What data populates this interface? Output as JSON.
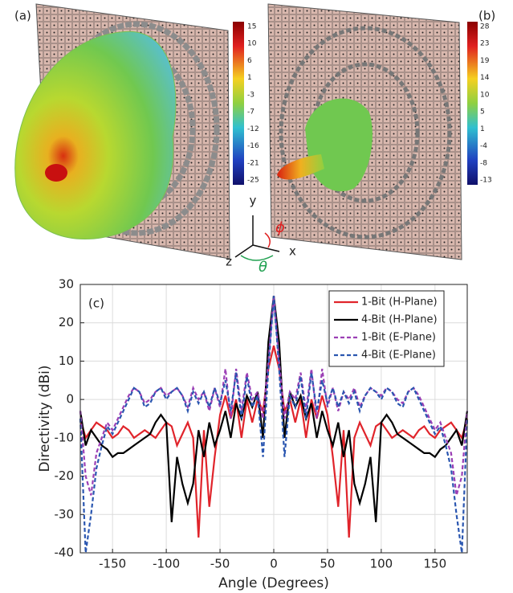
{
  "panel_a": {
    "label": "(a)",
    "colorbar_ticks": [
      15,
      10,
      6,
      1,
      -3,
      -7,
      -12,
      -16,
      -21,
      -25
    ]
  },
  "panel_b": {
    "label": "(b)",
    "colorbar_ticks": [
      28,
      23,
      19,
      14,
      10,
      5,
      1,
      -4,
      -8,
      -13
    ]
  },
  "triad": {
    "y": "y",
    "x": "x",
    "z": "z",
    "phi": "ϕ",
    "theta": "θ"
  },
  "chart_data": {
    "type": "line",
    "panel_label": "(c)",
    "x_label": "Angle (Degrees)",
    "y_label": "Directivity (dBi)",
    "xlim": [
      -180,
      180
    ],
    "ylim": [
      -40,
      30
    ],
    "xticks": [
      -150,
      -100,
      -50,
      0,
      50,
      100,
      150
    ],
    "yticks": [
      -40,
      -30,
      -20,
      -10,
      0,
      10,
      20,
      30
    ],
    "grid": true,
    "legend": "top-right",
    "x": [
      -180,
      -175,
      -170,
      -165,
      -160,
      -155,
      -150,
      -145,
      -140,
      -135,
      -130,
      -125,
      -120,
      -115,
      -110,
      -105,
      -100,
      -95,
      -90,
      -85,
      -80,
      -75,
      -70,
      -65,
      -60,
      -55,
      -50,
      -45,
      -40,
      -35,
      -30,
      -25,
      -20,
      -15,
      -10,
      -5,
      0,
      5,
      10,
      15,
      20,
      25,
      30,
      35,
      40,
      45,
      50,
      55,
      60,
      65,
      70,
      75,
      80,
      85,
      90,
      95,
      100,
      105,
      110,
      115,
      120,
      125,
      130,
      135,
      140,
      145,
      150,
      155,
      160,
      165,
      170,
      175,
      180
    ],
    "series": [
      {
        "name": "1-Bit (H-Plane)",
        "color": "#e0242b",
        "dashed": false,
        "values": [
          -5,
          -10,
          -8,
          -6,
          -7,
          -8,
          -10,
          -9,
          -7,
          -8,
          -10,
          -9,
          -8,
          -9,
          -10,
          -8,
          -6,
          -7,
          -12,
          -9,
          -6,
          -10,
          -36,
          -8,
          -28,
          -15,
          -4,
          1,
          -5,
          0,
          -10,
          0,
          -6,
          0,
          -3,
          8,
          14,
          8,
          -3,
          0,
          -6,
          0,
          -10,
          0,
          -5,
          1,
          -4,
          -15,
          -28,
          -8,
          -36,
          -10,
          -6,
          -9,
          -12,
          -7,
          -6,
          -8,
          -10,
          -9,
          -8,
          -9,
          -10,
          -8,
          -7,
          -9,
          -10,
          -8,
          -7,
          -6,
          -8,
          -10,
          -5
        ]
      },
      {
        "name": "4-Bit (H-Plane)",
        "color": "#000000",
        "dashed": false,
        "values": [
          -3,
          -12,
          -8,
          -10,
          -12,
          -13,
          -15,
          -14,
          -14,
          -13,
          -12,
          -11,
          -10,
          -9,
          -6,
          -4,
          -6,
          -32,
          -15,
          -22,
          -27,
          -22,
          -8,
          -15,
          -6,
          -12,
          -8,
          -3,
          -10,
          -1,
          -5,
          1,
          -2,
          2,
          -10,
          15,
          27,
          15,
          -10,
          2,
          -2,
          1,
          -5,
          -1,
          -10,
          -3,
          -8,
          -12,
          -6,
          -15,
          -8,
          -22,
          -27,
          -22,
          -15,
          -32,
          -6,
          -4,
          -6,
          -9,
          -10,
          -11,
          -12,
          -13,
          -14,
          -14,
          -15,
          -13,
          -12,
          -10,
          -8,
          -12,
          -3
        ]
      },
      {
        "name": "1-Bit (E-Plane)",
        "color": "#9b3fb5",
        "dashed": true,
        "values": [
          -3,
          -20,
          -25,
          -14,
          -10,
          -6,
          -8,
          -5,
          -2,
          1,
          3,
          2,
          -1,
          0,
          2,
          3,
          1,
          2,
          3,
          1,
          -2,
          3,
          0,
          2,
          -3,
          3,
          -2,
          8,
          -5,
          8,
          -3,
          7,
          0,
          2,
          -5,
          10,
          27,
          10,
          -5,
          2,
          0,
          7,
          -3,
          8,
          -5,
          8,
          -2,
          3,
          -3,
          2,
          0,
          3,
          -2,
          1,
          3,
          2,
          1,
          3,
          2,
          0,
          -1,
          2,
          3,
          1,
          -2,
          -5,
          -8,
          -6,
          -10,
          -14,
          -25,
          -20,
          -3
        ]
      },
      {
        "name": "4-Bit (E-Plane)",
        "color": "#2a56b0",
        "dashed": true,
        "values": [
          -5,
          -40,
          -30,
          -18,
          -12,
          -7,
          -9,
          -6,
          -3,
          0,
          3,
          2,
          -2,
          -1,
          2,
          3,
          0,
          2,
          3,
          1,
          -3,
          2,
          -1,
          2,
          -2,
          3,
          -1,
          5,
          -3,
          7,
          -5,
          6,
          -2,
          1,
          -15,
          8,
          27,
          8,
          -15,
          1,
          -2,
          6,
          -5,
          7,
          -3,
          5,
          -1,
          3,
          -2,
          2,
          -1,
          2,
          -3,
          1,
          3,
          2,
          0,
          3,
          2,
          -1,
          -2,
          2,
          3,
          0,
          -3,
          -6,
          -9,
          -7,
          -12,
          -18,
          -30,
          -40,
          -5
        ]
      }
    ]
  }
}
